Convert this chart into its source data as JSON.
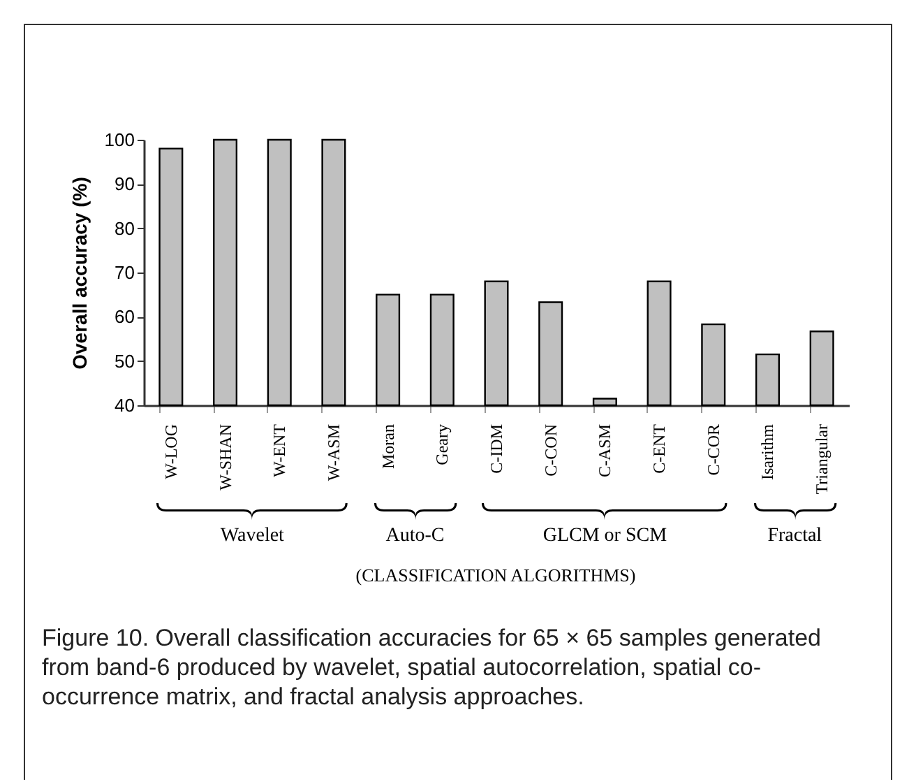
{
  "chart_data": {
    "type": "bar",
    "ylabel": "Overall accuracy (%)",
    "xlabel": "(CLASSIFICATION ALGORITHMS)",
    "categories": [
      "W-LOG",
      "W-SHAN",
      "W-ENT",
      "W-ASM",
      "Moran",
      "Geary",
      "C-IDM",
      "C-CON",
      "C-ASM",
      "C-ENT",
      "C-COR",
      "Isarithm",
      "Triangular"
    ],
    "values": [
      98,
      100,
      100,
      100,
      65,
      65,
      68,
      63.3,
      41.5,
      68,
      58.3,
      51.5,
      56.7
    ],
    "color": "#c0c0c0",
    "ylim": [
      40,
      100
    ],
    "yticks": [
      40,
      50,
      60,
      70,
      80,
      90,
      100
    ],
    "grid": false,
    "legend": false,
    "annotations": [
      "Wavelet",
      "Auto-C",
      "GLCM or SCM",
      "Fractal",
      "Figure 10. Overall classification accuracies for 65 × 65 samples generated from band-6 produced by wavelet, spatial autocorrelation, spatial co-occurrence matrix, and fractal analysis approaches."
    ]
  }
}
